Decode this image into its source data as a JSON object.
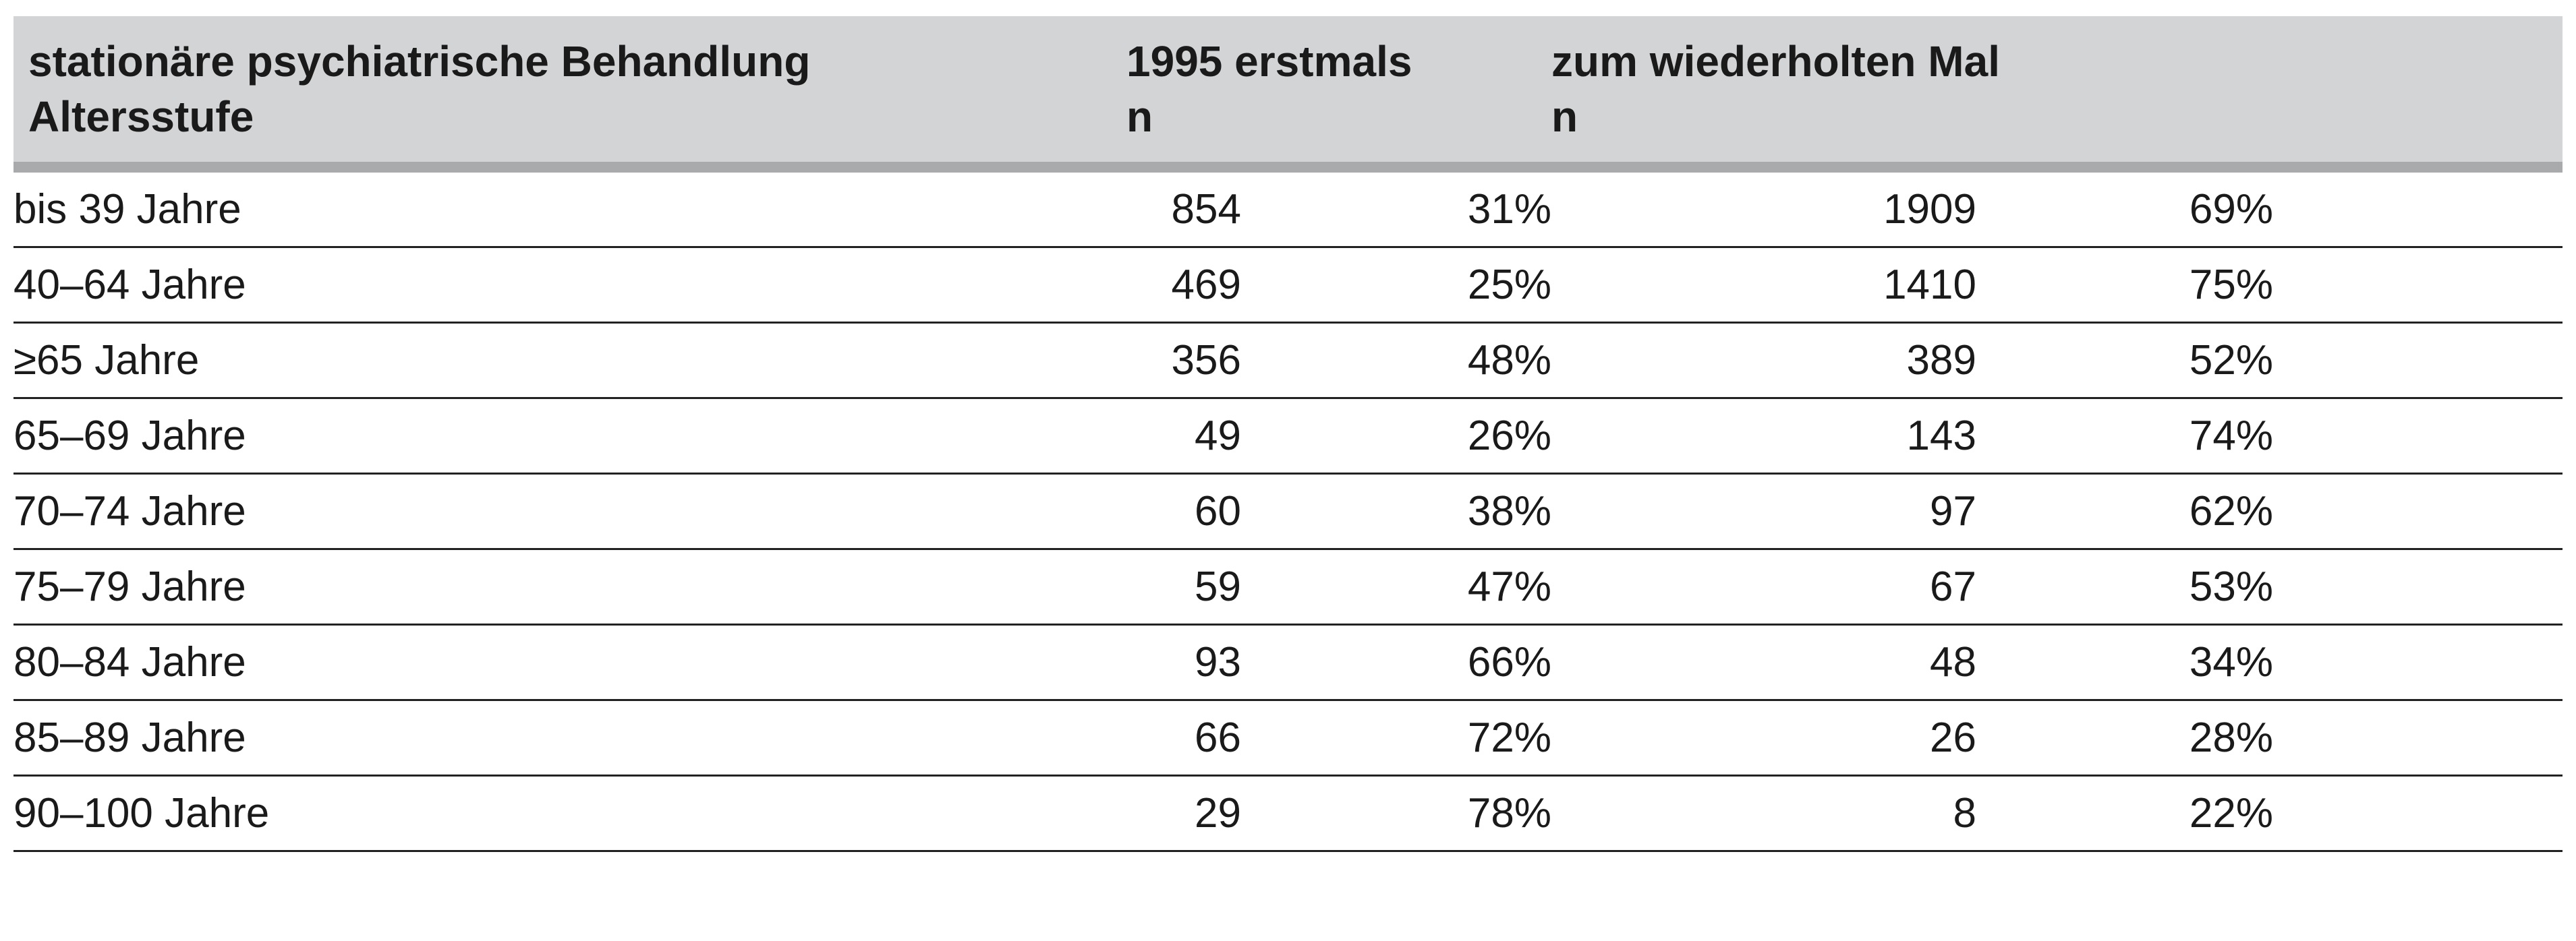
{
  "header": {
    "col1_line1": "stationäre psychiatrische Behandlung",
    "col1_line2": "Altersstufe",
    "col2_line1": "1995 erstmals",
    "col2_line2": "n",
    "col3_line1": "zum wiederholten Mal",
    "col3_line2": "n"
  },
  "rows": [
    {
      "age": "bis 39 Jahre",
      "first_n": "854",
      "first_pct": "31%",
      "repeat_n": "1909",
      "repeat_pct": "69%"
    },
    {
      "age": "40–64 Jahre",
      "first_n": "469",
      "first_pct": "25%",
      "repeat_n": "1410",
      "repeat_pct": "75%"
    },
    {
      "age": "≥65 Jahre",
      "first_n": "356",
      "first_pct": "48%",
      "repeat_n": "389",
      "repeat_pct": "52%"
    },
    {
      "age": "65–69 Jahre",
      "first_n": "49",
      "first_pct": "26%",
      "repeat_n": "143",
      "repeat_pct": "74%"
    },
    {
      "age": "70–74 Jahre",
      "first_n": "60",
      "first_pct": "38%",
      "repeat_n": "97",
      "repeat_pct": "62%"
    },
    {
      "age": "75–79 Jahre",
      "first_n": "59",
      "first_pct": "47%",
      "repeat_n": "67",
      "repeat_pct": "53%"
    },
    {
      "age": "80–84 Jahre",
      "first_n": "93",
      "first_pct": "66%",
      "repeat_n": "48",
      "repeat_pct": "34%"
    },
    {
      "age": "85–89 Jahre",
      "first_n": "66",
      "first_pct": "72%",
      "repeat_n": "26",
      "repeat_pct": "28%"
    },
    {
      "age": "90–100 Jahre",
      "first_n": "29",
      "first_pct": "78%",
      "repeat_n": "8",
      "repeat_pct": "22%"
    }
  ],
  "colors": {
    "header_bg": "#d3d4d6",
    "header_rule": "#a9aaac",
    "row_rule": "#222222"
  }
}
